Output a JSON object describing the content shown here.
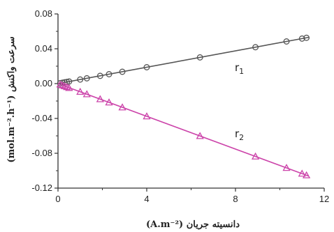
{
  "chart_data": {
    "type": "scatter",
    "xlabel": "دانسیته جریان (A.m⁻²)",
    "ylabel": "سرعت واکنش (mol.m⁻².h⁻¹)",
    "xlim": [
      0,
      12
    ],
    "ylim": [
      -0.12,
      0.08
    ],
    "xticks": [
      0,
      4,
      8,
      12
    ],
    "yticks": [
      0.08,
      0.04,
      0.0,
      -0.04,
      -0.08,
      -0.12
    ],
    "ytick_labels": [
      "0.08",
      "0.04",
      "0.00",
      "-0.04",
      "-0.08",
      "-0.12"
    ],
    "grid": false,
    "series": [
      {
        "name": "r1",
        "color": "#555555",
        "marker": "circle",
        "fit": {
          "slope": 0.0047,
          "intercept": 0.0
        },
        "points": [
          [
            0.1,
            0.0005
          ],
          [
            0.2,
            0.001
          ],
          [
            0.3,
            0.0015
          ],
          [
            0.4,
            0.0019
          ],
          [
            0.5,
            0.0024
          ],
          [
            1.0,
            0.0047
          ],
          [
            1.3,
            0.0061
          ],
          [
            1.9,
            0.0089
          ],
          [
            2.3,
            0.0108
          ],
          [
            2.9,
            0.0136
          ],
          [
            4.0,
            0.0188
          ],
          [
            6.4,
            0.0301
          ],
          [
            8.9,
            0.0418
          ],
          [
            10.3,
            0.0484
          ],
          [
            11.0,
            0.0517
          ],
          [
            11.2,
            0.0526
          ]
        ]
      },
      {
        "name": "r2",
        "color": "#cc44aa",
        "marker": "triangle",
        "fit": {
          "slope": -0.0094,
          "intercept": 0.0
        },
        "points": [
          [
            0.1,
            -0.001
          ],
          [
            0.2,
            -0.002
          ],
          [
            0.3,
            -0.003
          ],
          [
            0.4,
            -0.004
          ],
          [
            0.5,
            -0.005
          ],
          [
            1.0,
            -0.0094
          ],
          [
            1.3,
            -0.0122
          ],
          [
            1.9,
            -0.0179
          ],
          [
            2.3,
            -0.0216
          ],
          [
            2.9,
            -0.0273
          ],
          [
            4.0,
            -0.0376
          ],
          [
            6.4,
            -0.0602
          ],
          [
            8.9,
            -0.0837
          ],
          [
            10.3,
            -0.0968
          ],
          [
            11.0,
            -0.1034
          ],
          [
            11.2,
            -0.1053
          ]
        ]
      }
    ]
  },
  "labels": {
    "r1": {
      "main": "r",
      "sub": "1"
    },
    "r2": {
      "main": "r",
      "sub": "2"
    }
  }
}
